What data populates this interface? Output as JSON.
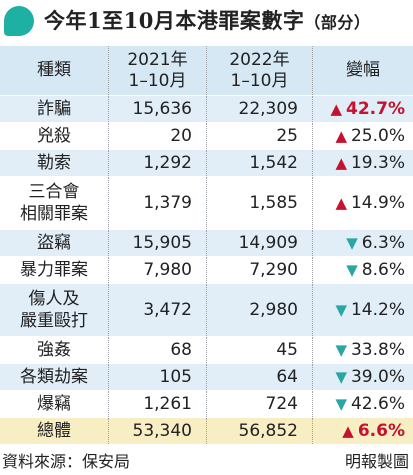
{
  "title": {
    "main": "今年1至10月本港罪案數字",
    "sub": "（部分）",
    "icon": "speech-bubble-icon",
    "icon_color": "#1fb0a4"
  },
  "headers": {
    "category": "種類",
    "y2021": "2021年\n1–10月",
    "y2022": "2022年\n1–10月",
    "change": "變幅"
  },
  "rows": [
    {
      "name": "詐騙",
      "v2021": "15,636",
      "v2022": "22,309",
      "dir": "up",
      "change": "42.7%",
      "highlight": true
    },
    {
      "name": "兇殺",
      "v2021": "20",
      "v2022": "25",
      "dir": "up",
      "change": "25.0%",
      "highlight": false
    },
    {
      "name": "勒索",
      "v2021": "1,292",
      "v2022": "1,542",
      "dir": "up",
      "change": "19.3%",
      "highlight": false
    },
    {
      "name": "三合會\n相關罪案",
      "v2021": "1,379",
      "v2022": "1,585",
      "dir": "up",
      "change": "14.9%",
      "highlight": false
    },
    {
      "name": "盜竊",
      "v2021": "15,905",
      "v2022": "14,909",
      "dir": "down",
      "change": "6.3%",
      "highlight": false
    },
    {
      "name": "暴力罪案",
      "v2021": "7,980",
      "v2022": "7,290",
      "dir": "down",
      "change": "8.6%",
      "highlight": false
    },
    {
      "name": "傷人及\n嚴重毆打",
      "v2021": "3,472",
      "v2022": "2,980",
      "dir": "down",
      "change": "14.2%",
      "highlight": false
    },
    {
      "name": "強姦",
      "v2021": "68",
      "v2022": "45",
      "dir": "down",
      "change": "33.8%",
      "highlight": false
    },
    {
      "name": "各類劫案",
      "v2021": "105",
      "v2022": "64",
      "dir": "down",
      "change": "39.0%",
      "highlight": false
    },
    {
      "name": "爆竊",
      "v2021": "1,261",
      "v2022": "724",
      "dir": "down",
      "change": "42.6%",
      "highlight": false
    },
    {
      "name": "總體",
      "v2021": "53,340",
      "v2022": "56,852",
      "dir": "up",
      "change": "6.6%",
      "highlight": true
    }
  ],
  "footer": {
    "source": "資料來源：保安局",
    "credit": "明報製圖"
  },
  "colors": {
    "header_bg": "#d6e8f4",
    "row_blue": "#e1eef7",
    "total_bg": "#f8eec4",
    "up": "#c4122f",
    "down": "#2aa6a4"
  }
}
